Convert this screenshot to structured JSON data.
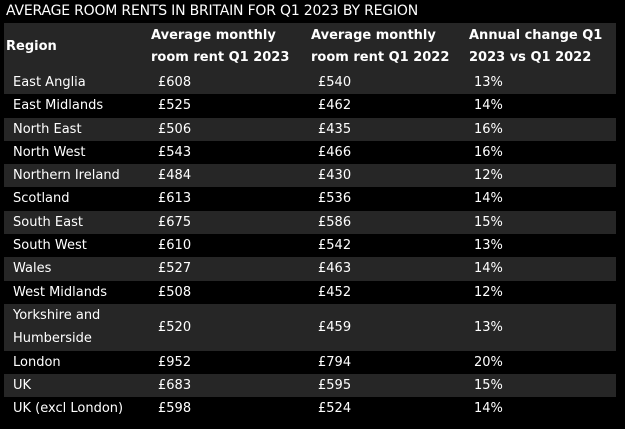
{
  "chart_data": {
    "type": "table",
    "title": "AVERAGE ROOM RENTS IN BRITAIN FOR Q1 2023 BY REGION",
    "columns": [
      "Region",
      "Average monthly room rent Q1 2023",
      "Average monthly room rent Q1 2022",
      "Annual change Q1 2023 vs Q1 2022"
    ],
    "rows": [
      [
        "East Anglia",
        "£608",
        "£540",
        "13%"
      ],
      [
        "East Midlands",
        "£525",
        "£462",
        "14%"
      ],
      [
        "North East",
        "£506",
        "£435",
        "16%"
      ],
      [
        "North West",
        "£543",
        "£466",
        "16%"
      ],
      [
        "Northern Ireland",
        "£484",
        "£430",
        "12%"
      ],
      [
        "Scotland",
        "£613",
        "£536",
        "14%"
      ],
      [
        "South East",
        "£675",
        "£586",
        "15%"
      ],
      [
        "South West",
        "£610",
        "£542",
        "13%"
      ],
      [
        "Wales",
        "£527",
        "£463",
        "14%"
      ],
      [
        "West Midlands",
        "£508",
        "£452",
        "12%"
      ],
      [
        "Yorkshire and Humberside",
        "£520",
        "£459",
        "13%"
      ],
      [
        "London",
        "£952",
        "£794",
        "20%"
      ],
      [
        "UK",
        "£683",
        "£595",
        "15%"
      ],
      [
        "UK (excl London)",
        "£598",
        "£524",
        "14%"
      ]
    ]
  }
}
